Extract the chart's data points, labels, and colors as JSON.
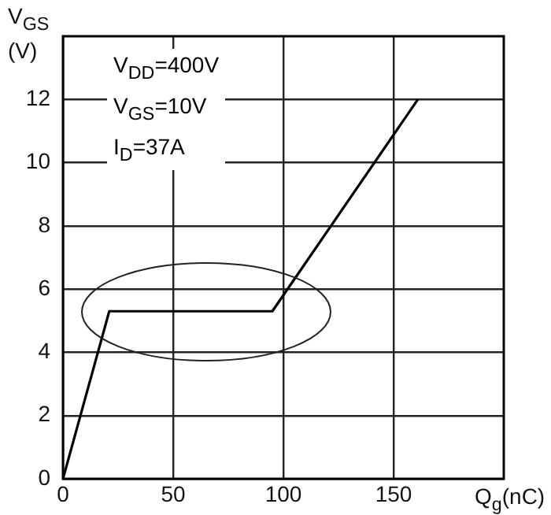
{
  "chart_data": {
    "type": "line",
    "xlabel": "Q$_{g}$(nC)",
    "ylabel": "V$_{GS}$ (V)",
    "annotations": [
      "V$_{DD}$=400V",
      "V$_{GS}$=10V",
      "I$_{D}$=37A"
    ],
    "x": [
      0,
      21,
      95,
      161
    ],
    "values": [
      0,
      5.3,
      5.3,
      12
    ],
    "color": "#000000",
    "marker": "none",
    "xlim": [
      0,
      200
    ],
    "ylim": [
      0,
      14
    ],
    "xticks": [
      0,
      50,
      100,
      150
    ],
    "yticks": [
      0,
      2,
      4,
      6,
      8,
      10,
      12
    ],
    "grid": true,
    "legend": false
  }
}
